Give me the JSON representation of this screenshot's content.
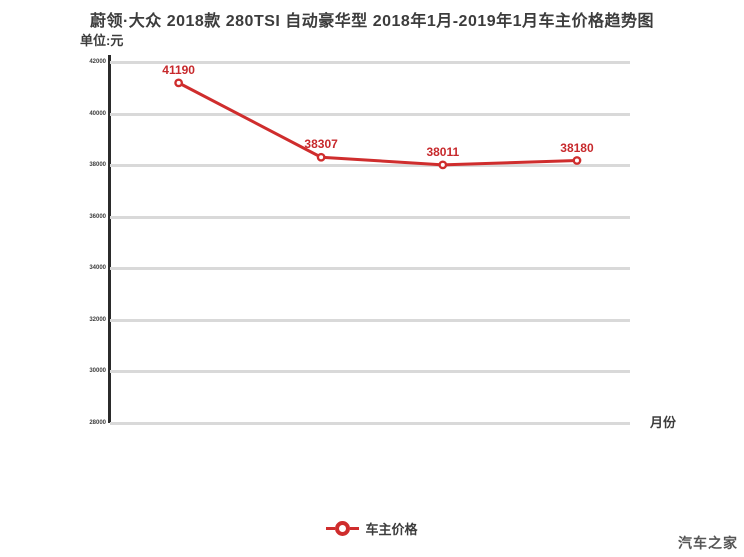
{
  "title": "蔚领·大众 2018款 280TSI 自动豪华型 2018年1月-2019年1月车主价格趋势图",
  "unit_label": "单位:元",
  "x_axis_label": "月份",
  "legend": {
    "label": "车主价格"
  },
  "watermark": "汽车之家",
  "colors": {
    "line": "#cf2d2d",
    "point_label": "#c7292c",
    "grid": "#d9d9d9",
    "axis": "#2b2b2b",
    "text": "#3c3c3c",
    "watermark": "#555555"
  },
  "chart_data": {
    "type": "line",
    "title": "蔚领·大众 2018款 280TSI 自动豪华型 2018年1月-2019年1月车主价格趋势图",
    "xlabel": "月份",
    "ylabel": "单位:元",
    "grid": true,
    "legend_position": "bottom-center",
    "ylim": [
      28000,
      42000
    ],
    "yticks": [
      42000,
      40000,
      38000,
      36000,
      34000,
      32000,
      30000,
      28000
    ],
    "series": [
      {
        "name": "车主价格",
        "values": [
          41190,
          38307,
          38011,
          38180
        ],
        "labels": [
          "41190",
          "38307",
          "38011",
          "38180"
        ],
        "x_pct": [
          13.2,
          40.6,
          64.0,
          89.8
        ]
      }
    ]
  }
}
